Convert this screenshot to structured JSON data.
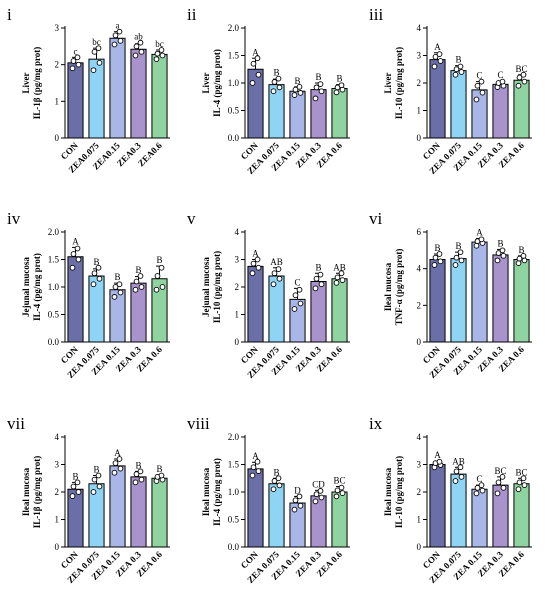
{
  "colors": [
    "#6a6fa8",
    "#8fd4f5",
    "#a8b6e8",
    "#a893cc",
    "#8fd4a0"
  ],
  "chart_data": [
    {
      "type": "bar",
      "panel": "i",
      "ylabel_lines": [
        "Liver",
        "IL-1β (pg/mg prot)"
      ],
      "categories": [
        "CON",
        "ZEA0.075",
        "ZEA0.15",
        "ZEA0.3",
        "ZEA0.6"
      ],
      "values": [
        2.05,
        2.15,
        2.72,
        2.42,
        2.28
      ],
      "errors": [
        0.15,
        0.3,
        0.18,
        0.15,
        0.12
      ],
      "letters": [
        "c",
        "bc",
        "a",
        "ab",
        "bc"
      ],
      "points": [
        [
          1.9,
          2.0,
          2.1,
          2.2
        ],
        [
          1.85,
          2.05,
          2.35,
          2.45
        ],
        [
          2.55,
          2.65,
          2.8,
          2.9
        ],
        [
          2.25,
          2.35,
          2.5,
          2.6
        ],
        [
          2.15,
          2.25,
          2.3,
          2.4
        ]
      ],
      "ylim": [
        0,
        3
      ],
      "yticks": [
        0,
        1,
        2,
        3
      ]
    },
    {
      "type": "bar",
      "panel": "ii",
      "ylabel_lines": [
        "Liver",
        "IL-4 (pg/mg prot)"
      ],
      "categories": [
        "CON",
        "ZEA 0.075",
        "ZEA 0.15",
        "ZEA 0.3",
        "ZEA 0.6"
      ],
      "values": [
        1.25,
        0.97,
        0.85,
        0.88,
        0.9
      ],
      "errors": [
        0.2,
        0.1,
        0.08,
        0.12,
        0.07
      ],
      "letters": [
        "A",
        "B",
        "B",
        "B",
        "B"
      ],
      "points": [
        [
          1.0,
          1.15,
          1.35,
          1.45
        ],
        [
          0.85,
          0.92,
          1.02,
          1.08
        ],
        [
          0.78,
          0.82,
          0.88,
          0.93
        ],
        [
          0.72,
          0.85,
          0.92,
          0.98
        ],
        [
          0.83,
          0.88,
          0.92,
          0.96
        ]
      ],
      "ylim": [
        0,
        2.0
      ],
      "yticks": [
        0.0,
        0.5,
        1.0,
        1.5,
        2.0
      ]
    },
    {
      "type": "bar",
      "panel": "iii",
      "ylabel_lines": [
        "Liver",
        "IL-10 (pg/mg prot)"
      ],
      "categories": [
        "CON",
        "ZEA 0.075",
        "ZEA 0.15",
        "ZEA 0.3",
        "ZEA 0.6"
      ],
      "values": [
        2.85,
        2.45,
        1.75,
        1.95,
        2.1
      ],
      "errors": [
        0.25,
        0.18,
        0.3,
        0.12,
        0.2
      ],
      "letters": [
        "A",
        "B",
        "C",
        "C",
        "BC"
      ],
      "points": [
        [
          2.6,
          2.8,
          2.95,
          3.05
        ],
        [
          2.3,
          2.4,
          2.5,
          2.6
        ],
        [
          1.4,
          1.65,
          1.9,
          2.05
        ],
        [
          1.85,
          1.9,
          2.0,
          2.05
        ],
        [
          1.9,
          2.05,
          2.2,
          2.3
        ]
      ],
      "ylim": [
        0,
        4
      ],
      "yticks": [
        0,
        1,
        2,
        3,
        4
      ]
    },
    {
      "type": "bar",
      "panel": "iv",
      "ylabel_lines": [
        "Jejunal mucosa",
        "IL-4 (pg/mg prot)"
      ],
      "categories": [
        "CON",
        "ZEA 0.075",
        "ZEA 0.15",
        "ZEA 0.3",
        "ZEA 0.6"
      ],
      "values": [
        1.55,
        1.2,
        0.95,
        1.07,
        1.15
      ],
      "errors": [
        0.17,
        0.13,
        0.12,
        0.12,
        0.23
      ],
      "letters": [
        "A",
        "B",
        "B",
        "B",
        "B"
      ],
      "points": [
        [
          1.35,
          1.5,
          1.6,
          1.7
        ],
        [
          1.05,
          1.15,
          1.25,
          1.35
        ],
        [
          0.82,
          0.9,
          1.0,
          1.05
        ],
        [
          0.95,
          1.0,
          1.1,
          1.2
        ],
        [
          0.95,
          1.0,
          1.2,
          1.35
        ]
      ],
      "ylim": [
        0,
        2.0
      ],
      "yticks": [
        0.0,
        0.5,
        1.0,
        1.5,
        2.0
      ]
    },
    {
      "type": "bar",
      "panel": "v",
      "ylabel_lines": [
        "Jejunal mucosa",
        "IL-10 (pg/mg prot)"
      ],
      "categories": [
        "CON",
        "ZEA 0.075",
        "ZEA 0.15",
        "ZEA 0.3",
        "ZEA 0.6"
      ],
      "values": [
        2.75,
        2.4,
        1.55,
        2.2,
        2.3
      ],
      "errors": [
        0.25,
        0.3,
        0.4,
        0.3,
        0.2
      ],
      "letters": [
        "A",
        "AB",
        "C",
        "B",
        "AB"
      ],
      "points": [
        [
          2.5,
          2.7,
          2.85,
          3.0
        ],
        [
          2.1,
          2.3,
          2.5,
          2.65
        ],
        [
          1.2,
          1.4,
          1.7,
          1.9
        ],
        [
          1.95,
          2.1,
          2.3,
          2.45
        ],
        [
          2.15,
          2.25,
          2.35,
          2.5
        ]
      ],
      "ylim": [
        0,
        4
      ],
      "yticks": [
        0,
        1,
        2,
        3,
        4
      ]
    },
    {
      "type": "bar",
      "panel": "vi",
      "ylabel_lines": [
        "Ileal mucosa",
        "TNF-α (pg/mg prot)"
      ],
      "categories": [
        "CON",
        "ZEA 0.075",
        "ZEA 0.15",
        "ZEA 0.3",
        "ZEA 0.6"
      ],
      "values": [
        4.5,
        4.55,
        5.45,
        4.75,
        4.5
      ],
      "errors": [
        0.3,
        0.35,
        0.2,
        0.3,
        0.2
      ],
      "letters": [
        "B",
        "B",
        "A",
        "B",
        "B"
      ],
      "points": [
        [
          4.2,
          4.4,
          4.6,
          4.8
        ],
        [
          4.2,
          4.45,
          4.6,
          4.9
        ],
        [
          5.25,
          5.4,
          5.5,
          5.6
        ],
        [
          4.45,
          4.7,
          4.85,
          5.0
        ],
        [
          4.3,
          4.45,
          4.55,
          4.7
        ]
      ],
      "ylim": [
        0,
        6
      ],
      "yticks": [
        0,
        2,
        4,
        6
      ]
    },
    {
      "type": "bar",
      "panel": "vii",
      "ylabel_lines": [
        "Ileal mucosa",
        "IL-1β (pg/mg prot)"
      ],
      "categories": [
        "CON",
        "ZEA 0.075",
        "ZEA 0.15",
        "ZEA 0.3",
        "ZEA 0.6"
      ],
      "values": [
        2.1,
        2.3,
        2.95,
        2.55,
        2.5
      ],
      "errors": [
        0.25,
        0.3,
        0.25,
        0.2,
        0.12
      ],
      "letters": [
        "B",
        "B",
        "A",
        "B",
        "B"
      ],
      "points": [
        [
          1.85,
          2.0,
          2.2,
          2.35
        ],
        [
          2.0,
          2.2,
          2.45,
          2.6
        ],
        [
          2.7,
          2.85,
          3.05,
          3.2
        ],
        [
          2.35,
          2.45,
          2.65,
          2.75
        ],
        [
          2.4,
          2.45,
          2.55,
          2.6
        ]
      ],
      "ylim": [
        0,
        4
      ],
      "yticks": [
        0,
        1,
        2,
        3,
        4
      ]
    },
    {
      "type": "bar",
      "panel": "viii",
      "ylabel_lines": [
        "Ileal mucosa",
        "IL-4 (pg/mg prot)"
      ],
      "categories": [
        "CON",
        "ZEA 0.075",
        "ZEA 0.15",
        "ZEA 0.3",
        "ZEA 0.6"
      ],
      "values": [
        1.42,
        1.15,
        0.8,
        0.93,
        1.0
      ],
      "errors": [
        0.12,
        0.1,
        0.12,
        0.1,
        0.1
      ],
      "letters": [
        "A",
        "B",
        "D",
        "CD",
        "BC"
      ],
      "points": [
        [
          1.3,
          1.38,
          1.45,
          1.55
        ],
        [
          1.05,
          1.12,
          1.2,
          1.25
        ],
        [
          0.68,
          0.75,
          0.85,
          0.92
        ],
        [
          0.83,
          0.9,
          0.96,
          1.02
        ],
        [
          0.92,
          0.98,
          1.03,
          1.08
        ]
      ],
      "ylim": [
        0,
        2.0
      ],
      "yticks": [
        0.0,
        0.5,
        1.0,
        1.5,
        2.0
      ]
    },
    {
      "type": "bar",
      "panel": "ix",
      "ylabel_lines": [
        "Ileal mucosa",
        "IL-10 (pg/mg prot)"
      ],
      "categories": [
        "CON",
        "ZEA 0.075",
        "ZEA 0.15",
        "ZEA 0.3",
        "ZEA 0.6"
      ],
      "values": [
        3.0,
        2.65,
        2.1,
        2.25,
        2.3
      ],
      "errors": [
        0.12,
        0.25,
        0.15,
        0.3,
        0.2
      ],
      "letters": [
        "A",
        "AB",
        "C",
        "BC",
        "BC"
      ],
      "points": [
        [
          2.9,
          2.98,
          3.05,
          3.1
        ],
        [
          2.4,
          2.55,
          2.75,
          2.9
        ],
        [
          1.95,
          2.05,
          2.15,
          2.25
        ],
        [
          1.95,
          2.15,
          2.35,
          2.55
        ],
        [
          2.1,
          2.25,
          2.35,
          2.5
        ]
      ],
      "ylim": [
        0,
        4
      ],
      "yticks": [
        0,
        1,
        2,
        3,
        4
      ]
    }
  ]
}
